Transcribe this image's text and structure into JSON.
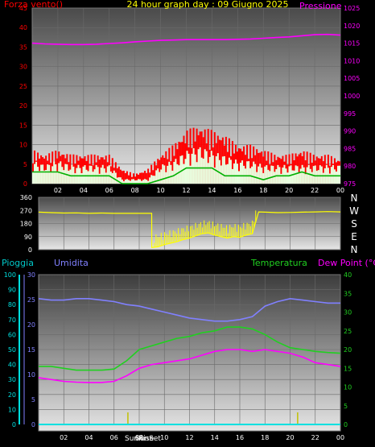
{
  "colors": {
    "wind": "#ff0000",
    "gust": "#ff0000",
    "avg_wind": "#00b000",
    "gust_fill": "#e8ffe0",
    "pressure": "#ff00ff",
    "direction": "#ffff00",
    "humidity": "#8080ff",
    "temperature": "#20d020",
    "dewpoint": "#ff00ff",
    "rain": "#00e0e0",
    "title": "#ffff00",
    "axis_text": "#ffffff",
    "left_axis_text": "#ff0000",
    "sun_marker": "#c0c000"
  },
  "panel1": {
    "left_label": "Forza vento()",
    "title": "24 hour graph day : 09 Giugno 2025",
    "right_label": "Pressione"
  },
  "panel2": {
    "compass": [
      "N",
      "W",
      "S",
      "E",
      "N"
    ]
  },
  "panel3": {
    "pioggia_label": "Pioggia",
    "umidita_label": "Umidita",
    "temperatura_label": "Temperatura",
    "dewpoint_label": "Dew Point (°C)",
    "sunrise_label": "SunRise",
    "sunset_label": "SunSet"
  },
  "chart_data": [
    {
      "type": "line",
      "title": "24 hour graph day : 09 Giugno 2025",
      "x_ticks": [
        "02",
        "04",
        "06",
        "08",
        "10",
        "12",
        "14",
        "16",
        "18",
        "20",
        "22",
        "00"
      ],
      "x_range_hours": [
        0,
        24
      ],
      "y_left": {
        "label": "Forza vento()",
        "ticks": [
          0,
          5,
          10,
          15,
          20,
          25,
          30,
          35,
          40,
          45
        ],
        "range": [
          0,
          45
        ]
      },
      "y_right": {
        "label": "Pressione",
        "ticks": [
          975,
          980,
          985,
          990,
          995,
          1000,
          1005,
          1010,
          1015,
          1020,
          1025
        ],
        "range": [
          975,
          1025
        ]
      },
      "series": [
        {
          "name": "Pressione",
          "axis": "right",
          "x": [
            0,
            1,
            2,
            3,
            4,
            5,
            6,
            7,
            8,
            9,
            10,
            11,
            12,
            13,
            14,
            15,
            16,
            17,
            18,
            19,
            20,
            21,
            22,
            23,
            24
          ],
          "y": [
            1015.0,
            1014.8,
            1014.7,
            1014.6,
            1014.6,
            1014.7,
            1014.9,
            1015.1,
            1015.4,
            1015.6,
            1015.8,
            1015.9,
            1016.0,
            1016.0,
            1016.0,
            1016.0,
            1016.1,
            1016.2,
            1016.4,
            1016.6,
            1016.8,
            1017.1,
            1017.4,
            1017.5,
            1017.3
          ]
        },
        {
          "name": "Gust",
          "x": [
            0,
            1,
            2,
            3,
            4,
            5,
            6,
            7,
            8,
            9,
            10,
            11,
            12,
            13,
            14,
            15,
            16,
            17,
            18,
            19,
            20,
            21,
            22,
            23,
            24
          ],
          "y": [
            7,
            6,
            7,
            6,
            6,
            6,
            6,
            3,
            2,
            3,
            6,
            8,
            11,
            12,
            11,
            10,
            8,
            8,
            7,
            6,
            6,
            7,
            6,
            6,
            5
          ]
        },
        {
          "name": "Wind",
          "x": [
            0,
            1,
            2,
            3,
            4,
            5,
            6,
            7,
            8,
            9,
            10,
            11,
            12,
            13,
            14,
            15,
            16,
            17,
            18,
            19,
            20,
            21,
            22,
            23,
            24
          ],
          "y": [
            5,
            4,
            5,
            4,
            4,
            4,
            4,
            1,
            1,
            1,
            4,
            5,
            7,
            8,
            7,
            6,
            5,
            5,
            4,
            4,
            4,
            4,
            4,
            4,
            4
          ]
        },
        {
          "name": "Avg",
          "x": [
            0,
            1,
            2,
            3,
            4,
            5,
            6,
            7,
            8,
            9,
            10,
            11,
            12,
            13,
            14,
            15,
            16,
            17,
            18,
            19,
            20,
            21,
            22,
            23,
            24
          ],
          "y": [
            3,
            3,
            3,
            2,
            2,
            2,
            2,
            0,
            0,
            0,
            1,
            2,
            4,
            4,
            4,
            2,
            2,
            2,
            1,
            2,
            2,
            3,
            2,
            2,
            2
          ]
        }
      ]
    },
    {
      "type": "line",
      "x_range_hours": [
        0,
        24
      ],
      "y_ticks": [
        0,
        90,
        180,
        270,
        360
      ],
      "range": [
        0,
        360
      ],
      "series": [
        {
          "name": "Direzione",
          "x": [
            0,
            1,
            2,
            3,
            4,
            5,
            6,
            7,
            8,
            8.99,
            9.0,
            9.5,
            10,
            10.5,
            11,
            11.5,
            12,
            12.5,
            13,
            13.5,
            14,
            14.5,
            15,
            15.5,
            16,
            16.5,
            17,
            17.5,
            18,
            19,
            20,
            21,
            22,
            23,
            24
          ],
          "y": [
            258,
            255,
            252,
            253,
            250,
            252,
            250,
            250,
            250,
            250,
            15,
            20,
            35,
            45,
            55,
            70,
            80,
            95,
            110,
            115,
            100,
            90,
            80,
            90,
            85,
            100,
            110,
            260,
            258,
            255,
            256,
            258,
            260,
            262,
            260
          ]
        }
      ]
    },
    {
      "type": "line",
      "x_ticks": [
        "02",
        "04",
        "06",
        "08",
        "10",
        "12",
        "14",
        "16",
        "18",
        "20",
        "22",
        "00"
      ],
      "x_range_hours": [
        0,
        24
      ],
      "y_pioggia": {
        "label": "Pioggia",
        "ticks": [
          0,
          10,
          20,
          30,
          40,
          50,
          60,
          70,
          80,
          90,
          100
        ],
        "range": [
          0,
          100
        ]
      },
      "y_umidita": {
        "label": "Umidita",
        "ticks": [
          0,
          5,
          10,
          15,
          20,
          25,
          30
        ],
        "range": [
          0,
          30
        ]
      },
      "y_temp": {
        "label": "Temperatura",
        "ticks": [
          0,
          5,
          10,
          15,
          20,
          25,
          30,
          35,
          40
        ],
        "range": [
          0,
          40
        ]
      },
      "series": [
        {
          "name": "Umidita",
          "axis": "pioggia",
          "x": [
            0,
            1,
            2,
            3,
            4,
            5,
            6,
            7,
            8,
            9,
            10,
            11,
            12,
            13,
            14,
            15,
            16,
            17,
            18,
            19,
            20,
            21,
            22,
            23,
            24
          ],
          "y": [
            84,
            83,
            83,
            84,
            84,
            83,
            82,
            80,
            79,
            77,
            75,
            73,
            71,
            70,
            69,
            69,
            70,
            72,
            79,
            82,
            84,
            83,
            82,
            81,
            81
          ]
        },
        {
          "name": "Temperatura",
          "axis": "temp",
          "x": [
            0,
            1,
            2,
            3,
            4,
            5,
            6,
            7,
            8,
            9,
            10,
            11,
            12,
            13,
            14,
            15,
            16,
            17,
            18,
            19,
            20,
            21,
            22,
            23,
            24
          ],
          "y": [
            15.5,
            15.5,
            15.0,
            14.5,
            14.5,
            14.5,
            14.8,
            17,
            20,
            21,
            22,
            23,
            23.5,
            24.5,
            25,
            26,
            26,
            25.5,
            24,
            22,
            20.5,
            20,
            19.5,
            19.2,
            19
          ]
        },
        {
          "name": "Dew Point",
          "axis": "temp",
          "x": [
            0,
            1,
            2,
            3,
            4,
            5,
            6,
            7,
            8,
            9,
            10,
            11,
            12,
            13,
            14,
            15,
            16,
            17,
            18,
            19,
            20,
            21,
            22,
            23,
            24
          ],
          "y": [
            12.5,
            12.0,
            11.5,
            11.3,
            11.2,
            11.2,
            11.5,
            13,
            15,
            16,
            16.5,
            17,
            17.5,
            18.5,
            19.5,
            20,
            20,
            19.5,
            20,
            19.5,
            19,
            18,
            16.5,
            16,
            15.5
          ]
        },
        {
          "name": "Pioggia",
          "axis": "pioggia",
          "x": [
            0,
            24
          ],
          "y": [
            0,
            0
          ]
        }
      ],
      "sunrise_hour": 7.1,
      "sunset_hour": 20.6
    }
  ]
}
